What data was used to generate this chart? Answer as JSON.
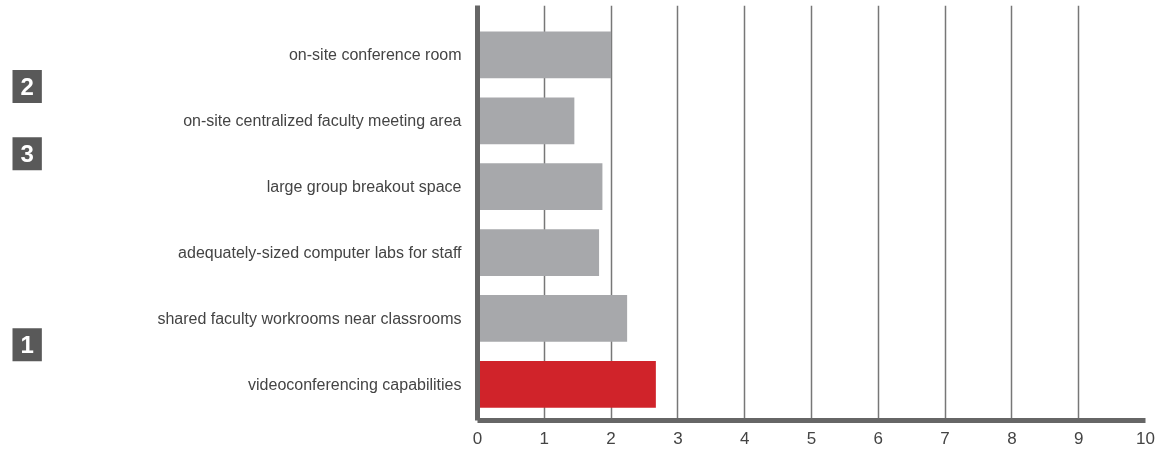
{
  "chart_data": {
    "type": "bar",
    "orientation": "horizontal",
    "categories": [
      "on-site conference room",
      "on-site centralized faculty meeting area",
      "large group breakout space",
      "adequately-sized computer labs for staff",
      "shared faculty workrooms near classrooms",
      "videoconferencing capabilities"
    ],
    "values": [
      2.0,
      1.45,
      1.87,
      1.82,
      2.24,
      2.67
    ],
    "colors": [
      "#a7a8ab",
      "#a7a8ab",
      "#a7a8ab",
      "#a7a8ab",
      "#a7a8ab",
      "#d0232a"
    ],
    "xlim": [
      0,
      10
    ],
    "xticks": [
      0,
      1,
      2,
      3,
      4,
      5,
      6,
      7,
      8,
      9,
      10
    ],
    "grid": "x",
    "annotations": [
      "2",
      "3",
      "1"
    ]
  }
}
